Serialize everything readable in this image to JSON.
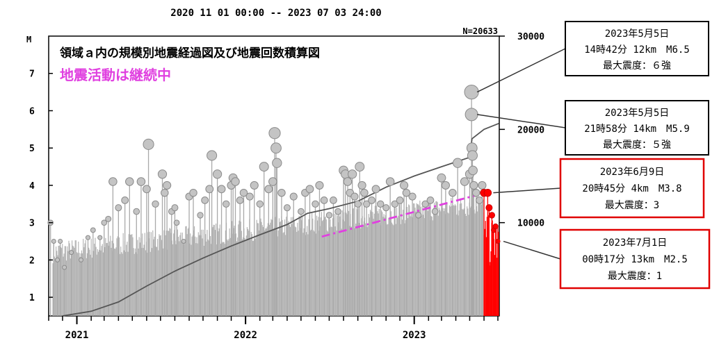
{
  "chart_data": {
    "type": "scatter",
    "header": "2020 11 01 00:00 -- 2023 07 03 24:00",
    "count_label": "N=20633",
    "title": "領域ａ内の規模別地震経過図及び地震回数積算図",
    "subtitle": "地震活動は継続中",
    "y_left_label": "M",
    "y_left_ticks": [
      1,
      2,
      3,
      4,
      5,
      6,
      7
    ],
    "y_left_range": [
      0.5,
      8
    ],
    "y_right_ticks": [
      10000,
      20000,
      30000
    ],
    "y_right_range": [
      0,
      30000
    ],
    "x_range": [
      "2020-11-01",
      "2023-07-04"
    ],
    "x_year_labels": [
      {
        "label": "2021",
        "date": "2021-01-01"
      },
      {
        "label": "2022",
        "date": "2022-01-01"
      },
      {
        "label": "2023",
        "date": "2023-01-01"
      }
    ],
    "grid": false,
    "colors": {
      "stem": "#a9a9a9",
      "circle": "#c4c4c4",
      "recent": "#ff0000",
      "trend": "#e040e0",
      "cumulative": "#555555"
    },
    "cumulative": [
      {
        "date": "2020-12-01",
        "count": 0
      },
      {
        "date": "2021-02-01",
        "count": 500
      },
      {
        "date": "2021-04-01",
        "count": 1500
      },
      {
        "date": "2021-06-01",
        "count": 3200
      },
      {
        "date": "2021-08-01",
        "count": 4800
      },
      {
        "date": "2021-10-01",
        "count": 6200
      },
      {
        "date": "2021-12-01",
        "count": 7500
      },
      {
        "date": "2022-02-01",
        "count": 8700
      },
      {
        "date": "2022-04-01",
        "count": 9800
      },
      {
        "date": "2022-05-15",
        "count": 11000
      },
      {
        "date": "2022-07-01",
        "count": 11500
      },
      {
        "date": "2022-09-01",
        "count": 12300
      },
      {
        "date": "2022-11-01",
        "count": 13800
      },
      {
        "date": "2023-01-01",
        "count": 15000
      },
      {
        "date": "2023-03-01",
        "count": 16000
      },
      {
        "date": "2023-05-01",
        "count": 17000
      },
      {
        "date": "2023-05-06",
        "count": 19000
      },
      {
        "date": "2023-06-01",
        "count": 20000
      },
      {
        "date": "2023-07-03",
        "count": 20633
      }
    ],
    "trend_line": [
      {
        "date": "2022-06-15",
        "count": 8500
      },
      {
        "date": "2023-05-20",
        "count": 13000
      }
    ],
    "events": [
      {
        "date": "2020-11-05",
        "m": 3.0
      },
      {
        "date": "2020-11-12",
        "m": 2.5
      },
      {
        "date": "2020-11-20",
        "m": 2.0
      },
      {
        "date": "2020-11-26",
        "m": 2.5
      },
      {
        "date": "2020-12-05",
        "m": 1.8
      },
      {
        "date": "2020-12-20",
        "m": 2.2
      },
      {
        "date": "2021-01-10",
        "m": 2.0
      },
      {
        "date": "2021-01-25",
        "m": 2.6
      },
      {
        "date": "2021-02-05",
        "m": 2.8
      },
      {
        "date": "2021-02-20",
        "m": 2.6
      },
      {
        "date": "2021-03-01",
        "m": 3.0
      },
      {
        "date": "2021-03-10",
        "m": 3.1
      },
      {
        "date": "2021-03-20",
        "m": 4.1
      },
      {
        "date": "2021-04-01",
        "m": 3.4
      },
      {
        "date": "2021-04-15",
        "m": 3.6
      },
      {
        "date": "2021-04-25",
        "m": 4.1
      },
      {
        "date": "2021-05-10",
        "m": 3.3
      },
      {
        "date": "2021-05-20",
        "m": 4.1
      },
      {
        "date": "2021-06-01",
        "m": 3.9
      },
      {
        "date": "2021-06-05",
        "m": 5.1
      },
      {
        "date": "2021-06-20",
        "m": 3.5
      },
      {
        "date": "2021-07-05",
        "m": 4.3
      },
      {
        "date": "2021-07-10",
        "m": 3.8
      },
      {
        "date": "2021-07-15",
        "m": 4.0
      },
      {
        "date": "2021-07-25",
        "m": 3.3
      },
      {
        "date": "2021-08-01",
        "m": 3.4
      },
      {
        "date": "2021-08-05",
        "m": 3.0
      },
      {
        "date": "2021-08-20",
        "m": 2.5
      },
      {
        "date": "2021-09-01",
        "m": 3.7
      },
      {
        "date": "2021-09-10",
        "m": 3.8
      },
      {
        "date": "2021-09-25",
        "m": 3.2
      },
      {
        "date": "2021-10-05",
        "m": 3.6
      },
      {
        "date": "2021-10-15",
        "m": 3.9
      },
      {
        "date": "2021-10-20",
        "m": 4.8
      },
      {
        "date": "2021-11-01",
        "m": 4.3
      },
      {
        "date": "2021-11-10",
        "m": 3.9
      },
      {
        "date": "2021-11-20",
        "m": 3.5
      },
      {
        "date": "2021-12-01",
        "m": 4.0
      },
      {
        "date": "2021-12-05",
        "m": 4.2
      },
      {
        "date": "2021-12-10",
        "m": 4.1
      },
      {
        "date": "2021-12-20",
        "m": 3.6
      },
      {
        "date": "2021-12-28",
        "m": 3.8
      },
      {
        "date": "2022-01-10",
        "m": 3.7
      },
      {
        "date": "2022-01-20",
        "m": 4.0
      },
      {
        "date": "2022-02-01",
        "m": 3.5
      },
      {
        "date": "2022-02-10",
        "m": 4.5
      },
      {
        "date": "2022-02-20",
        "m": 3.9
      },
      {
        "date": "2022-03-01",
        "m": 4.1
      },
      {
        "date": "2022-03-05",
        "m": 5.4
      },
      {
        "date": "2022-03-08",
        "m": 5.0
      },
      {
        "date": "2022-03-10",
        "m": 4.6
      },
      {
        "date": "2022-03-20",
        "m": 3.8
      },
      {
        "date": "2022-04-01",
        "m": 3.4
      },
      {
        "date": "2022-04-15",
        "m": 3.7
      },
      {
        "date": "2022-05-01",
        "m": 3.3
      },
      {
        "date": "2022-05-10",
        "m": 3.8
      },
      {
        "date": "2022-05-20",
        "m": 3.9
      },
      {
        "date": "2022-06-01",
        "m": 3.5
      },
      {
        "date": "2022-06-10",
        "m": 4.0
      },
      {
        "date": "2022-06-20",
        "m": 3.6
      },
      {
        "date": "2022-07-01",
        "m": 3.2
      },
      {
        "date": "2022-07-10",
        "m": 3.6
      },
      {
        "date": "2022-07-20",
        "m": 3.3
      },
      {
        "date": "2022-08-01",
        "m": 4.4
      },
      {
        "date": "2022-08-05",
        "m": 4.3
      },
      {
        "date": "2022-08-10",
        "m": 4.1
      },
      {
        "date": "2022-08-15",
        "m": 3.8
      },
      {
        "date": "2022-08-20",
        "m": 4.3
      },
      {
        "date": "2022-08-25",
        "m": 3.7
      },
      {
        "date": "2022-09-01",
        "m": 3.5
      },
      {
        "date": "2022-09-05",
        "m": 4.5
      },
      {
        "date": "2022-09-10",
        "m": 4.0
      },
      {
        "date": "2022-09-15",
        "m": 3.8
      },
      {
        "date": "2022-09-20",
        "m": 3.5
      },
      {
        "date": "2022-10-01",
        "m": 3.6
      },
      {
        "date": "2022-10-10",
        "m": 3.9
      },
      {
        "date": "2022-10-20",
        "m": 3.5
      },
      {
        "date": "2022-11-01",
        "m": 3.4
      },
      {
        "date": "2022-11-10",
        "m": 4.1
      },
      {
        "date": "2022-11-20",
        "m": 3.5
      },
      {
        "date": "2022-12-01",
        "m": 3.6
      },
      {
        "date": "2022-12-10",
        "m": 4.0
      },
      {
        "date": "2022-12-15",
        "m": 3.8
      },
      {
        "date": "2022-12-28",
        "m": 3.7
      },
      {
        "date": "2023-01-10",
        "m": 3.2
      },
      {
        "date": "2023-01-25",
        "m": 3.5
      },
      {
        "date": "2023-02-05",
        "m": 3.6
      },
      {
        "date": "2023-02-15",
        "m": 3.3
      },
      {
        "date": "2023-03-01",
        "m": 4.2
      },
      {
        "date": "2023-03-10",
        "m": 4.0
      },
      {
        "date": "2023-03-25",
        "m": 3.8
      },
      {
        "date": "2023-04-05",
        "m": 4.6
      },
      {
        "date": "2023-04-20",
        "m": 4.1
      },
      {
        "date": "2023-05-01",
        "m": 4.3
      },
      {
        "date": "2023-05-05",
        "m": 6.5
      },
      {
        "date": "2023-05-05",
        "m": 5.9
      },
      {
        "date": "2023-05-06",
        "m": 5.0
      },
      {
        "date": "2023-05-07",
        "m": 4.8
      },
      {
        "date": "2023-05-08",
        "m": 4.4
      },
      {
        "date": "2023-05-10",
        "m": 4.0
      },
      {
        "date": "2023-05-15",
        "m": 3.8
      },
      {
        "date": "2023-05-22",
        "m": 3.6
      },
      {
        "date": "2023-05-28",
        "m": 4.0
      },
      {
        "date": "2023-06-01",
        "m": 3.8,
        "recent": true
      },
      {
        "date": "2023-06-09",
        "m": 3.8,
        "recent": true
      },
      {
        "date": "2023-06-12",
        "m": 3.4,
        "recent": true
      },
      {
        "date": "2023-06-18",
        "m": 3.2,
        "recent": true
      },
      {
        "date": "2023-06-22",
        "m": 2.8,
        "recent": true
      },
      {
        "date": "2023-06-26",
        "m": 2.9,
        "recent": true
      },
      {
        "date": "2023-07-01",
        "m": 2.5,
        "recent": true
      }
    ],
    "annotations": [
      {
        "date_line": "2023年5月5日",
        "detail_line": "14時42分 12km　M6.5",
        "intensity_line": "最大震度：６強",
        "target_date": "2023-05-05",
        "target_m": 6.5,
        "border": "#000000"
      },
      {
        "date_line": "2023年5月5日",
        "detail_line": "21時58分 14km　M5.9",
        "intensity_line": "最大震度：５強",
        "target_date": "2023-05-05",
        "target_m": 5.9,
        "border": "#000000"
      },
      {
        "date_line": "2023年6月9日",
        "detail_line": "20時45分 4km　M3.8",
        "intensity_line": "最大震度：3",
        "target_date": "2023-06-09",
        "target_m": 3.8,
        "border": "#e00000"
      },
      {
        "date_line": "2023年7月1日",
        "detail_line": "00時17分 13km　M2.5",
        "intensity_line": "最大震度：1",
        "target_date": "2023-07-01",
        "target_m": 2.5,
        "border": "#e00000"
      }
    ]
  }
}
